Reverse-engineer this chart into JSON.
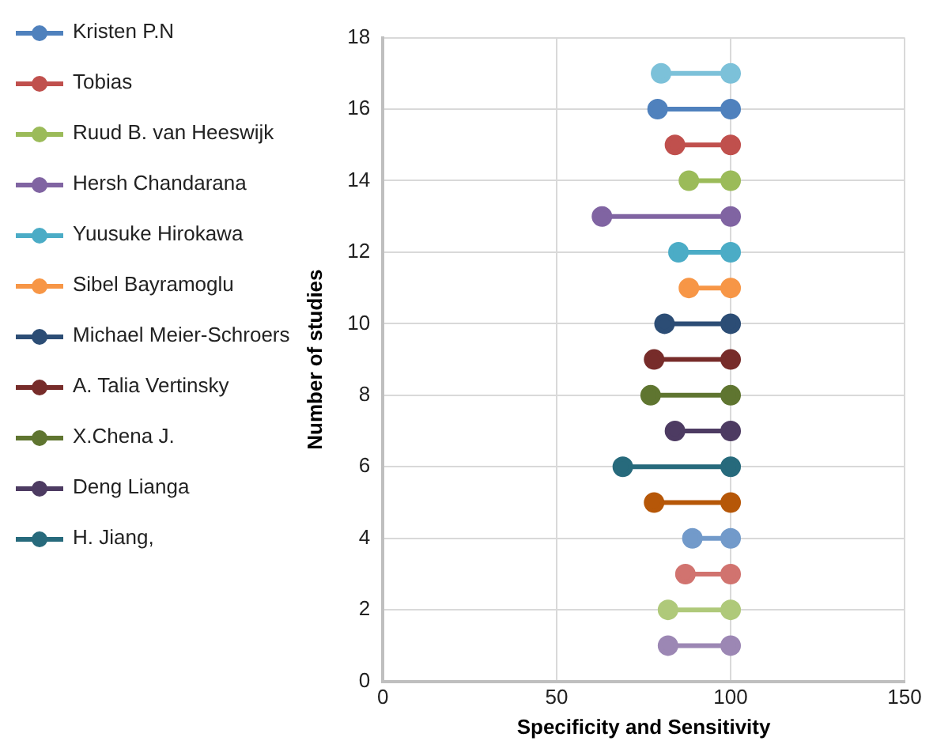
{
  "chart_data": {
    "type": "line",
    "xlabel": "Specificity and Sensitivity",
    "ylabel": "Number of studies",
    "xlim": [
      0,
      150
    ],
    "xticks": [
      0,
      50,
      100,
      150
    ],
    "ylim": [
      0,
      18
    ],
    "yticks": [
      0,
      2,
      4,
      6,
      8,
      10,
      12,
      14,
      16,
      18
    ],
    "grid": true,
    "legend": "left",
    "marker": "circle",
    "line_style": "solid",
    "series": [
      {
        "name": "Kristen P.N",
        "color": "#4f81bd",
        "x": [
          79,
          100
        ],
        "values": [
          16,
          16
        ]
      },
      {
        "name": "Tobias",
        "color": "#c0504d",
        "x": [
          84,
          100
        ],
        "values": [
          15,
          15
        ]
      },
      {
        "name": "Ruud B. van Heeswijk",
        "color": "#9bbb59",
        "x": [
          88,
          100
        ],
        "values": [
          14,
          14
        ]
      },
      {
        "name": "Hersh Chandarana",
        "color": "#8064a2",
        "x": [
          63,
          100
        ],
        "values": [
          13,
          13
        ]
      },
      {
        "name": "Yuusuke Hirokawa",
        "color": "#4bacc6",
        "x": [
          85,
          100
        ],
        "values": [
          12,
          12
        ]
      },
      {
        "name": "Sibel Bayramoglu",
        "color": "#f79646",
        "x": [
          88,
          100
        ],
        "values": [
          11,
          11
        ]
      },
      {
        "name": "Michael Meier-Schroers",
        "color": "#2c4d75",
        "x": [
          81,
          100
        ],
        "values": [
          10,
          10
        ]
      },
      {
        "name": "A. Talia Vertinsky",
        "color": "#772c2a",
        "x": [
          78,
          100
        ],
        "values": [
          9,
          9
        ]
      },
      {
        "name": "X.Chena J.",
        "color": "#5f7530",
        "x": [
          77,
          100
        ],
        "values": [
          8,
          8
        ]
      },
      {
        "name": "Deng Lianga",
        "color": "#4d3b62",
        "x": [
          84,
          100
        ],
        "values": [
          7,
          7
        ]
      },
      {
        "name": "H. Jiang,",
        "color": "#276a7c",
        "x": [
          69,
          100
        ],
        "values": [
          6,
          6
        ]
      },
      {
        "color": "#7cc1d9",
        "x": [
          80,
          100
        ],
        "values": [
          17,
          17
        ]
      },
      {
        "color": "#b65708",
        "x": [
          78,
          100
        ],
        "values": [
          5,
          5
        ]
      },
      {
        "color": "#729aca",
        "x": [
          89,
          100
        ],
        "values": [
          4,
          4
        ]
      },
      {
        "color": "#d1736f",
        "x": [
          87,
          100
        ],
        "values": [
          3,
          3
        ]
      },
      {
        "color": "#afc97a",
        "x": [
          82,
          100
        ],
        "values": [
          2,
          2
        ]
      },
      {
        "color": "#9c87b4",
        "x": [
          82,
          100
        ],
        "values": [
          1,
          1
        ]
      }
    ]
  }
}
